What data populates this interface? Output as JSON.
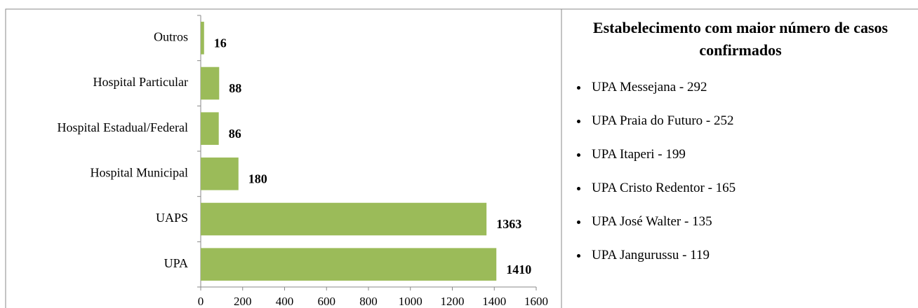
{
  "chart_data": {
    "type": "bar",
    "orientation": "horizontal",
    "categories": [
      "Outros",
      "Hospital Particular",
      "Hospital Estadual/Federal",
      "Hospital Municipal",
      "UAPS",
      "UPA"
    ],
    "values": [
      16,
      88,
      86,
      180,
      1363,
      1410
    ],
    "color": "#9bbb59",
    "xlim": [
      0,
      1600
    ],
    "xticks": [
      0,
      200,
      400,
      600,
      800,
      1000,
      1200,
      1400,
      1600
    ],
    "grid": false
  },
  "panel": {
    "title": "Estabelecimento com maior número de casos confirmados",
    "items": [
      "UPA Messejana - 292",
      "UPA Praia do Futuro - 252",
      "UPA Itaperi - 199",
      "UPA Cristo Redentor - 165",
      "UPA José Walter - 135",
      "UPA Jangurussu - 119"
    ]
  }
}
